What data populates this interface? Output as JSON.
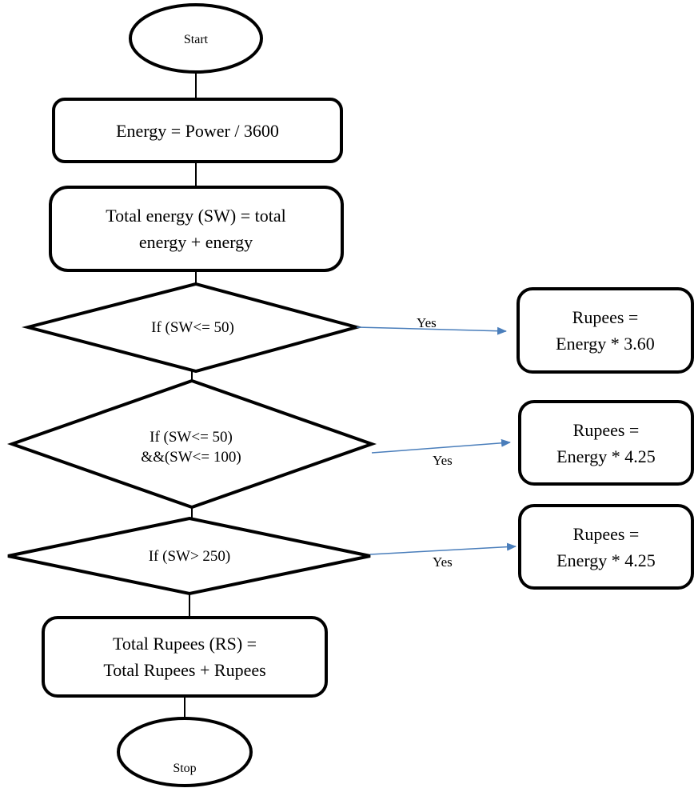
{
  "flowchart": {
    "start": "Start",
    "energy_calc": "Energy = Power / 3600",
    "total_energy": [
      "Total energy (SW) = total",
      "energy + energy"
    ],
    "decision1": [
      "If (SW<= 50)"
    ],
    "decision2": [
      "If (SW<= 50)",
      "&&(SW<= 100)"
    ],
    "decision3": [
      "If (SW> 250)"
    ],
    "rate1": [
      "Rupees =",
      "Energy * 3.60"
    ],
    "rate2": [
      "Rupees =",
      "Energy * 4.25"
    ],
    "rate3": [
      "Rupees =",
      "Energy * 4.25"
    ],
    "yes1": "Yes",
    "yes2": "Yes",
    "yes3": "Yes",
    "total_rupees": [
      "Total Rupees (RS) =",
      "Total Rupees + Rupees"
    ],
    "stop": "Stop"
  },
  "colors": {
    "arrow": "#4a7ebb",
    "stroke": "#000000"
  }
}
